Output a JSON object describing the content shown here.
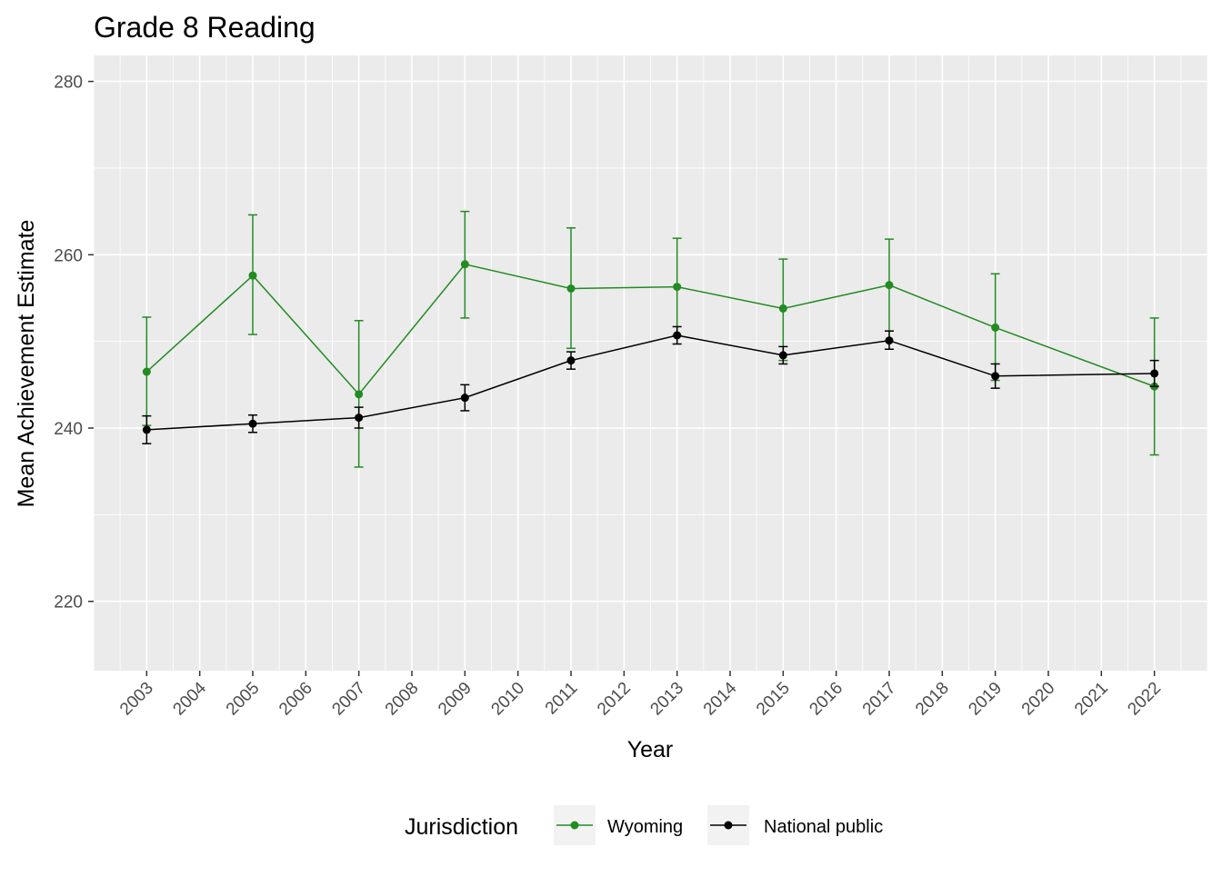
{
  "chart_data": {
    "type": "line",
    "title": "Grade 8 Reading",
    "xlabel": "Year",
    "ylabel": "Mean Achievement Estimate",
    "x_ticks": [
      "2003",
      "2004",
      "2005",
      "2006",
      "2007",
      "2008",
      "2009",
      "2010",
      "2011",
      "2012",
      "2013",
      "2014",
      "2015",
      "2016",
      "2017",
      "2018",
      "2019",
      "2020",
      "2021",
      "2022"
    ],
    "xlim": [
      2002,
      2023
    ],
    "y_ticks": [
      220,
      240,
      260,
      280
    ],
    "ylim": [
      212,
      283
    ],
    "grid": true,
    "legend": {
      "title": "Jurisdiction",
      "position": "bottom"
    },
    "series": [
      {
        "name": "Wyoming",
        "color": "#228B22",
        "points": [
          {
            "x": 2003,
            "y": 246.5,
            "lo": 240.3,
            "hi": 252.8
          },
          {
            "x": 2005,
            "y": 257.6,
            "lo": 250.8,
            "hi": 264.6
          },
          {
            "x": 2007,
            "y": 243.9,
            "lo": 235.5,
            "hi": 252.4
          },
          {
            "x": 2009,
            "y": 258.9,
            "lo": 252.7,
            "hi": 265.0
          },
          {
            "x": 2011,
            "y": 256.1,
            "lo": 249.2,
            "hi": 263.1
          },
          {
            "x": 2013,
            "y": 256.3,
            "lo": 250.7,
            "hi": 261.9
          },
          {
            "x": 2015,
            "y": 253.8,
            "lo": 247.8,
            "hi": 259.5
          },
          {
            "x": 2017,
            "y": 256.5,
            "lo": 251.2,
            "hi": 261.8
          },
          {
            "x": 2019,
            "y": 251.6,
            "lo": 245.5,
            "hi": 257.8
          },
          {
            "x": 2022,
            "y": 244.8,
            "lo": 236.9,
            "hi": 252.7
          }
        ]
      },
      {
        "name": "National public",
        "color": "#000000",
        "points": [
          {
            "x": 2003,
            "y": 239.8,
            "lo": 238.2,
            "hi": 241.4
          },
          {
            "x": 2005,
            "y": 240.5,
            "lo": 239.5,
            "hi": 241.5
          },
          {
            "x": 2007,
            "y": 241.2,
            "lo": 240.0,
            "hi": 242.4
          },
          {
            "x": 2009,
            "y": 243.5,
            "lo": 242.0,
            "hi": 245.0
          },
          {
            "x": 2011,
            "y": 247.8,
            "lo": 246.8,
            "hi": 248.8
          },
          {
            "x": 2013,
            "y": 250.7,
            "lo": 249.7,
            "hi": 251.7
          },
          {
            "x": 2015,
            "y": 248.4,
            "lo": 247.4,
            "hi": 249.4
          },
          {
            "x": 2017,
            "y": 250.1,
            "lo": 249.1,
            "hi": 251.2
          },
          {
            "x": 2019,
            "y": 246.0,
            "lo": 244.6,
            "hi": 247.4
          },
          {
            "x": 2022,
            "y": 246.3,
            "lo": 244.8,
            "hi": 247.8
          }
        ]
      }
    ]
  }
}
